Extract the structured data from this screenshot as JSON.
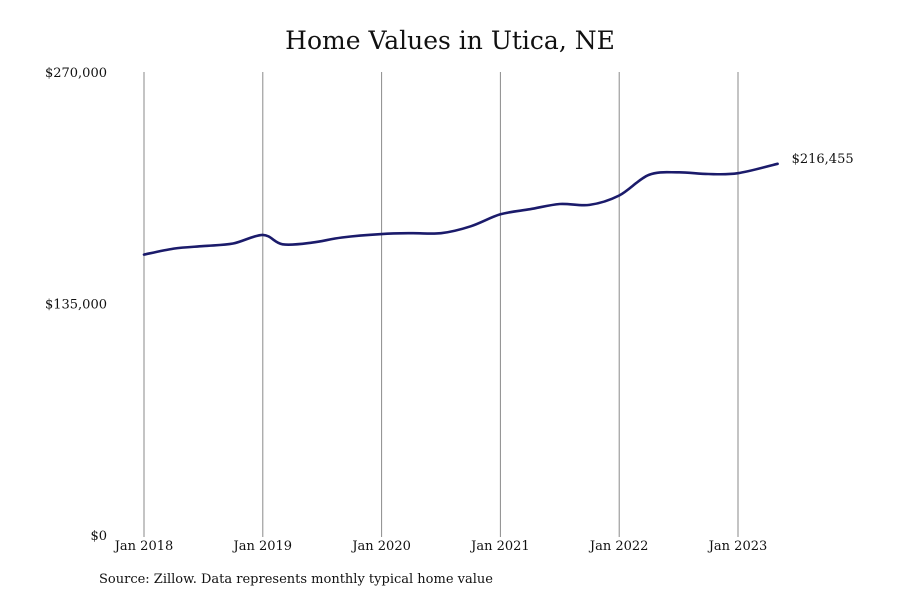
{
  "chart_data": {
    "type": "line",
    "title": "Home Values in Utica, NE",
    "xlabel": "",
    "ylabel": "",
    "x_tick_labels": [
      "Jan 2018",
      "Jan 2019",
      "Jan 2020",
      "Jan 2021",
      "Jan 2022",
      "Jan 2023"
    ],
    "y_tick_labels": [
      "$270,000",
      "$135,000",
      "$0"
    ],
    "y_ticks": [
      270000,
      135000,
      0
    ],
    "ylim": [
      0,
      270000
    ],
    "xlim": [
      "2018-01",
      "2023-05"
    ],
    "grid": "vertical lines at January of each year",
    "end_label": "$216,455",
    "series": [
      {
        "color": "#1b1b6b",
        "points": [
          [
            "2018-01",
            163500
          ],
          [
            "2018-04",
            167000
          ],
          [
            "2018-07",
            168500
          ],
          [
            "2018-10",
            170000
          ],
          [
            "2019-01",
            175000
          ],
          [
            "2019-03",
            169500
          ],
          [
            "2019-06",
            170500
          ],
          [
            "2019-09",
            173500
          ],
          [
            "2020-01",
            175500
          ],
          [
            "2020-04",
            176000
          ],
          [
            "2020-07",
            176000
          ],
          [
            "2020-10",
            180000
          ],
          [
            "2021-01",
            187000
          ],
          [
            "2021-04",
            190000
          ],
          [
            "2021-07",
            193000
          ],
          [
            "2021-10",
            192500
          ],
          [
            "2022-01",
            198000
          ],
          [
            "2022-04",
            210000
          ],
          [
            "2022-07",
            211500
          ],
          [
            "2022-10",
            210500
          ],
          [
            "2023-01",
            211000
          ],
          [
            "2023-05",
            216455
          ]
        ]
      }
    ]
  },
  "source": "Source: Zillow. Data represents monthly typical home value"
}
